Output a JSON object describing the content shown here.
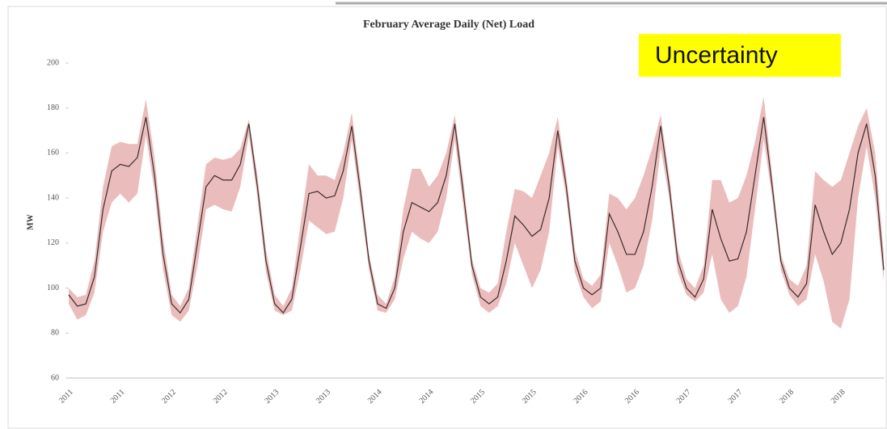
{
  "chart_data": {
    "type": "line",
    "title": "February Average Daily (Net) Load",
    "y_label": "MW",
    "annotation": "Uncertainty",
    "categories": [
      "2011",
      null,
      null,
      null,
      null,
      null,
      "2011",
      null,
      null,
      null,
      null,
      null,
      "2012",
      null,
      null,
      null,
      null,
      null,
      "2012",
      null,
      null,
      null,
      null,
      null,
      "2013",
      null,
      null,
      null,
      null,
      null,
      "2013",
      null,
      null,
      null,
      null,
      null,
      "2014",
      null,
      null,
      null,
      null,
      null,
      "2014",
      null,
      null,
      null,
      null,
      null,
      "2015",
      null,
      null,
      null,
      null,
      null,
      "2015",
      null,
      null,
      null,
      null,
      null,
      "2016",
      null,
      null,
      null,
      null,
      null,
      "2016",
      null,
      null,
      null,
      null,
      null,
      "2017",
      null,
      null,
      null,
      null,
      null,
      "2017",
      null,
      null,
      null,
      null,
      null,
      "2018",
      null,
      null,
      null,
      null,
      null,
      "2018",
      null,
      null,
      null,
      null,
      null
    ],
    "series": [
      {
        "color": "#3b2b2b",
        "values": [
          97,
          92,
          93,
          105,
          135,
          152,
          155,
          154,
          158,
          176,
          150,
          115,
          93,
          89,
          95,
          120,
          145,
          150,
          148,
          148,
          155,
          173,
          145,
          112,
          93,
          89,
          95,
          118,
          142,
          143,
          140,
          141,
          152,
          172,
          143,
          112,
          93,
          91,
          100,
          125,
          138,
          136,
          134,
          138,
          150,
          173,
          142,
          110,
          96,
          93,
          96,
          112,
          132,
          128,
          123,
          126,
          140,
          170,
          145,
          112,
          100,
          97,
          100,
          133,
          125,
          115,
          115,
          125,
          145,
          172,
          145,
          112,
          100,
          96,
          104,
          135,
          122,
          112,
          113,
          125,
          150,
          176,
          145,
          112,
          100,
          96,
          102,
          137,
          125,
          115,
          120,
          135,
          160,
          173,
          150,
          108
        ]
      }
    ],
    "band": {
      "color": "#ebbcbc",
      "upper": [
        100,
        96,
        97,
        112,
        145,
        163,
        165,
        164,
        164,
        184,
        158,
        122,
        97,
        92,
        100,
        128,
        155,
        158,
        157,
        158,
        162,
        175,
        150,
        117,
        97,
        92,
        100,
        128,
        155,
        150,
        150,
        148,
        160,
        178,
        148,
        115,
        97,
        93,
        105,
        135,
        153,
        153,
        145,
        150,
        160,
        177,
        148,
        113,
        100,
        98,
        102,
        125,
        144,
        143,
        140,
        150,
        160,
        176,
        150,
        117,
        104,
        101,
        106,
        142,
        140,
        135,
        140,
        150,
        162,
        177,
        150,
        117,
        104,
        100,
        110,
        148,
        148,
        138,
        140,
        150,
        165,
        185,
        150,
        115,
        104,
        101,
        110,
        152,
        148,
        145,
        148,
        160,
        172,
        180,
        160,
        115
      ],
      "lower": [
        93,
        86,
        88,
        98,
        125,
        138,
        142,
        138,
        142,
        168,
        143,
        108,
        88,
        85,
        90,
        110,
        135,
        137,
        135,
        134,
        145,
        168,
        140,
        107,
        90,
        88,
        90,
        108,
        130,
        127,
        124,
        125,
        140,
        166,
        137,
        108,
        90,
        89,
        95,
        113,
        125,
        122,
        120,
        125,
        140,
        166,
        136,
        106,
        92,
        89,
        92,
        102,
        120,
        110,
        100,
        108,
        125,
        163,
        140,
        107,
        96,
        91,
        94,
        120,
        110,
        98,
        100,
        110,
        130,
        162,
        140,
        107,
        97,
        94,
        98,
        115,
        95,
        89,
        92,
        105,
        135,
        166,
        140,
        108,
        97,
        92,
        95,
        115,
        103,
        85,
        82,
        95,
        140,
        163,
        140,
        103
      ]
    },
    "ylim": [
      60,
      200
    ],
    "yticks": [
      60,
      80,
      100,
      120,
      140,
      160,
      180,
      200
    ],
    "grid": false
  }
}
